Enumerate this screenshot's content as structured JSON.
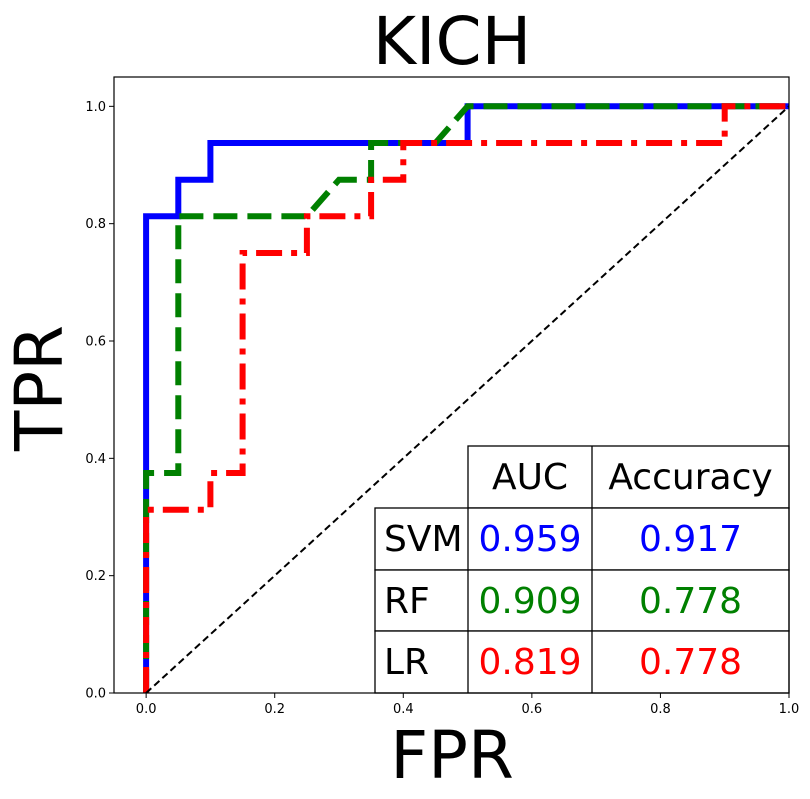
{
  "chart_data": {
    "type": "line",
    "title": "KICH",
    "xlabel": "FPR",
    "ylabel": "TPR",
    "xlim": [
      -0.05,
      1.0
    ],
    "ylim": [
      0.0,
      1.05
    ],
    "xticks": [
      "0.0",
      "0.2",
      "0.4",
      "0.6",
      "0.8",
      "1.0"
    ],
    "yticks": [
      "0.0",
      "0.2",
      "0.4",
      "0.6",
      "0.8",
      "1.0"
    ],
    "grid": false,
    "series": [
      {
        "name": "SVM",
        "color": "#0000ff",
        "style": "solid",
        "x": [
          0.0,
          0.0,
          0.05,
          0.05,
          0.1,
          0.1,
          0.5,
          0.5,
          1.0
        ],
        "y": [
          0.0,
          0.8125,
          0.8125,
          0.875,
          0.875,
          0.9375,
          0.9375,
          1.0,
          1.0
        ]
      },
      {
        "name": "RF",
        "color": "#008000",
        "style": "dashed",
        "x": [
          0.0,
          0.0,
          0.05,
          0.05,
          0.25,
          0.3,
          0.35,
          0.35,
          0.45,
          0.5,
          1.0
        ],
        "y": [
          0.0,
          0.375,
          0.375,
          0.8125,
          0.8125,
          0.875,
          0.875,
          0.9375,
          0.9375,
          1.0,
          1.0
        ]
      },
      {
        "name": "LR",
        "color": "#ff0000",
        "style": "dashdot",
        "x": [
          0.0,
          0.0,
          0.1,
          0.1,
          0.15,
          0.15,
          0.25,
          0.25,
          0.35,
          0.35,
          0.4,
          0.4,
          0.9,
          0.9,
          1.0
        ],
        "y": [
          0.0,
          0.3125,
          0.3125,
          0.375,
          0.375,
          0.75,
          0.75,
          0.8125,
          0.8125,
          0.875,
          0.875,
          0.9375,
          0.9375,
          1.0,
          1.0
        ]
      },
      {
        "color": "#000000",
        "style": "dashed-thin",
        "x": [
          0.0,
          1.0
        ],
        "y": [
          0.0,
          1.0
        ]
      }
    ],
    "table": {
      "header": [
        "",
        "AUC",
        "Accuracy"
      ],
      "rows": [
        {
          "label": "SVM",
          "auc": "0.959",
          "accuracy": "0.917",
          "color": "#0000ff"
        },
        {
          "label": "RF",
          "auc": "0.909",
          "accuracy": "0.778",
          "color": "#008000"
        },
        {
          "label": "LR",
          "auc": "0.819",
          "accuracy": "0.778",
          "color": "#ff0000"
        }
      ]
    }
  }
}
